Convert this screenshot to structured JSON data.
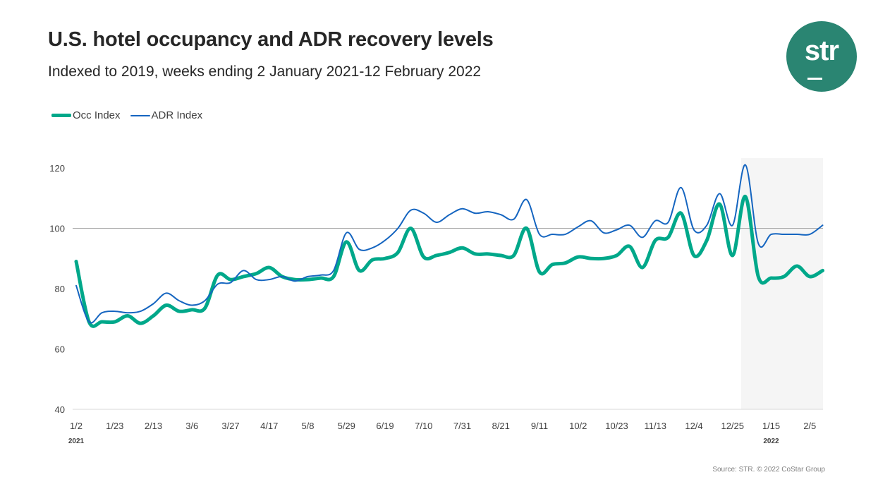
{
  "header": {
    "title": "U.S. hotel occupancy and ADR recovery levels",
    "subtitle": "Indexed to 2019, weeks ending 2 January 2021-12 February 2022"
  },
  "logo": {
    "text": "str",
    "color": "#2a8572"
  },
  "source": "Source: STR. © 2022 CoStar Group",
  "chart_data": {
    "type": "line",
    "title": "U.S. hotel occupancy and ADR recovery levels",
    "xlabel": "",
    "ylabel": "",
    "ylim": [
      40,
      120
    ],
    "yticks": [
      "40",
      "60",
      "80",
      "100",
      "120"
    ],
    "reference_line": 100,
    "grid": false,
    "legend": "top-left",
    "x_tick_labels": [
      "1/2",
      "1/23",
      "2/13",
      "3/6",
      "3/27",
      "4/17",
      "5/8",
      "5/29",
      "6/19",
      "7/10",
      "7/31",
      "8/21",
      "9/11",
      "10/2",
      "10/23",
      "11/13",
      "12/4",
      "12/25",
      "1/15",
      "2/5"
    ],
    "x_year_labels": [
      {
        "label": "2021",
        "at": "1/2"
      },
      {
        "label": "2022",
        "at": "1/15"
      }
    ],
    "x_start": "2021-01-02",
    "x_end": "2022-02-12",
    "x_step_days": 7,
    "highlight_start": "2022-01-01",
    "series": [
      {
        "name": "Occ Index",
        "color": "#00a88a",
        "values": [
          89,
          69,
          69,
          69,
          71,
          68.5,
          71,
          74.5,
          72.5,
          73,
          73.5,
          84.5,
          83,
          84,
          85,
          87,
          84,
          83,
          83,
          83.5,
          84,
          95.5,
          86,
          89.5,
          90,
          92,
          100,
          90.5,
          91,
          92,
          93.5,
          91.5,
          91.5,
          91,
          91,
          100,
          85.5,
          88,
          88.5,
          90.5,
          90,
          90,
          91,
          94,
          87,
          96,
          97,
          105,
          91,
          96,
          108,
          91,
          110.5,
          84,
          83.5,
          84,
          87.5,
          84,
          86
        ]
      },
      {
        "name": "ADR Index",
        "color": "#1565c0",
        "values": [
          81,
          69,
          72,
          72.5,
          72,
          72.5,
          75,
          78.5,
          76,
          74.5,
          76,
          81.5,
          82,
          86,
          83,
          83,
          84,
          82.5,
          84,
          84.5,
          86,
          98.5,
          93,
          93.5,
          96,
          100,
          106,
          105,
          102,
          104.5,
          106.5,
          105,
          105.5,
          104.5,
          103,
          109.5,
          98,
          98,
          98,
          100.5,
          102.5,
          98.5,
          99.5,
          101,
          97,
          102.5,
          102,
          113.5,
          99.5,
          101,
          111.5,
          101,
          121,
          95,
          98,
          98,
          98,
          98,
          101
        ]
      }
    ]
  }
}
